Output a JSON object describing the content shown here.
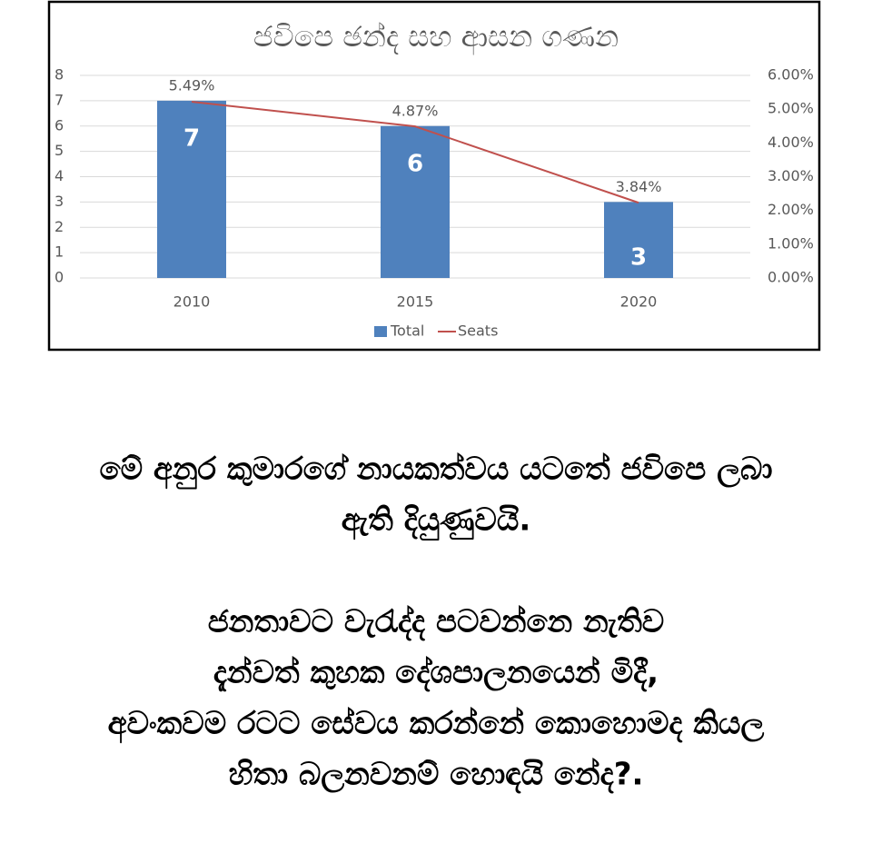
{
  "chart_data": {
    "type": "bar-line",
    "title": "ජවිපෙ ඡන්ද සහ ආසන ගණන",
    "categories": [
      "2010",
      "2015",
      "2020"
    ],
    "series": [
      {
        "name": "Total",
        "color": "#4f81bd",
        "type": "bar",
        "values": [
          7,
          6,
          3
        ]
      },
      {
        "name": "Seats",
        "color": "#c0504d",
        "type": "line",
        "axis": "y2",
        "values": [
          5.22,
          4.49,
          2.23
        ]
      }
    ],
    "annotations": [
      "5.49%",
      "4.87%",
      "3.84%"
    ],
    "ylim": [
      0,
      8
    ],
    "yticks": [
      0,
      1,
      2,
      3,
      4,
      5,
      6,
      7,
      8
    ],
    "y2lim": [
      0,
      6
    ],
    "y2ticks": [
      {
        "value": 0,
        "label": "0.00%"
      },
      {
        "value": 1,
        "label": "1.00%"
      },
      {
        "value": 2,
        "label": "2.00%"
      },
      {
        "value": 3,
        "label": "3.00%"
      },
      {
        "value": 4,
        "label": "4.00%"
      },
      {
        "value": 5,
        "label": "5.00%"
      },
      {
        "value": 6,
        "label": "6.00%"
      }
    ],
    "grid": true,
    "legend": "bottom"
  },
  "text": {
    "lines": [
      "මේ අනුර කුමාරගේ නායකත්වය යටතේ ජවිපෙ ලබා",
      "ඇති දියුණුවයි.",
      "ජනතාවට වැරැද්ද පටවන්නෙ නැතිව",
      "දැන්වත් කුහක දේශපාලනයෙන් මිදී,",
      "අවංකවම රටට සේවය කරන්නේ කොහොමද කියල",
      "හිතා බලනවනම් හොඳයි නේද?."
    ]
  }
}
